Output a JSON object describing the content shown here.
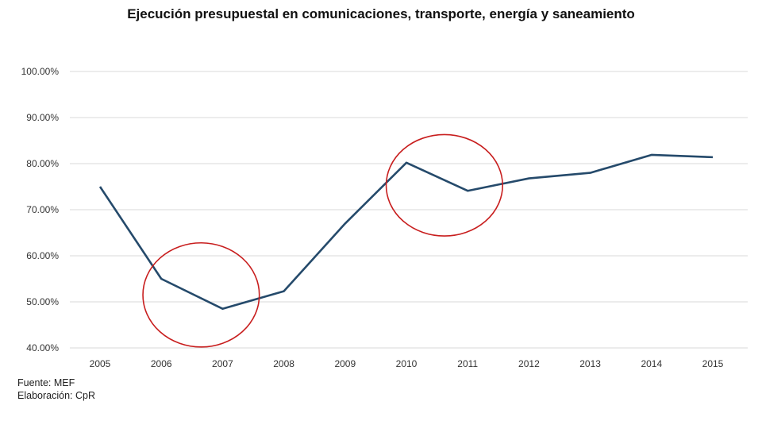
{
  "chart_data": {
    "type": "line",
    "title": "Ejecución presupuestal en comunicaciones, transporte, energía y saneamiento",
    "xlabel": "",
    "ylabel": "",
    "categories": [
      "2005",
      "2006",
      "2007",
      "2008",
      "2009",
      "2010",
      "2011",
      "2012",
      "2013",
      "2014",
      "2015"
    ],
    "series": [
      {
        "values": [
          75.0,
          55.0,
          48.5,
          52.3,
          67.0,
          80.2,
          74.1,
          76.8,
          78.0,
          81.9,
          81.4
        ]
      }
    ],
    "ylim": [
      40,
      100
    ],
    "yticks": [
      "40.00%",
      "50.00%",
      "60.00%",
      "70.00%",
      "80.00%",
      "90.00%",
      "100.00%"
    ],
    "grid": true,
    "colors": {
      "line": "#254a6b",
      "annotation": "#c81e1e",
      "grid": "#d9d9d9"
    },
    "annotations": [
      {
        "type": "ellipse",
        "center_x": 2006.65,
        "center_y": 51.5,
        "rx_years": 0.95,
        "ry_units": 11.3
      },
      {
        "type": "ellipse",
        "center_x": 2010.62,
        "center_y": 75.3,
        "rx_years": 0.95,
        "ry_units": 11.0
      }
    ]
  },
  "footer": {
    "source": "Fuente: MEF",
    "author": "Elaboración: CpR"
  }
}
